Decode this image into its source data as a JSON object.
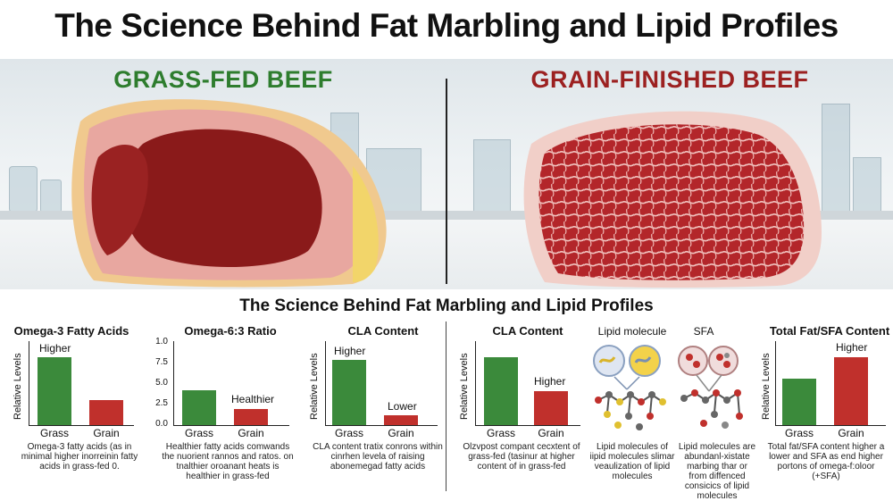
{
  "title": "The Science Behind Fat Marbling and Lipid Profiles",
  "subtitle": "The Science Behind Fat Marbling and Lipid Profiles",
  "colors": {
    "grass": "#3b8a3b",
    "grain": "#c0302c",
    "grass_title": "#2e7d2e",
    "grain_title": "#9c2121"
  },
  "left_photo": {
    "label": "GRASS-FED BEEF"
  },
  "right_photo": {
    "label": "GRAIN-FINISHED BEEF"
  },
  "charts": {
    "omega3": {
      "title": "Omega-3 Fatty Acids",
      "ylabel": "Relative Levels",
      "categories": [
        "Grass",
        "Grain"
      ],
      "annotation": "Higher",
      "caption": "Omega-3 fatty acids (as in minimal higher inorreinin fatty acids in grass-fed 0."
    },
    "omega6": {
      "title": "Omega-6:3 Ratio",
      "ticks": [
        "1.0",
        "7.5",
        "5.0",
        "2.5",
        "0.0"
      ],
      "categories": [
        "Grass",
        "Grain"
      ],
      "annotation": "Healthier",
      "caption": "Healthier fatty acids comwands the nuorient rannos and ratos. on tnalthier oroanant heats is healthier in grass-fed"
    },
    "cla1": {
      "title": "CLA Content",
      "ylabel": "Relative Levels",
      "categories": [
        "Grass",
        "Grain"
      ],
      "annotation_high": "Higher",
      "annotation_low": "Lower",
      "caption": "CLA content tratix conrons within cinrhen levela of raising abonemegad fatty acids"
    },
    "cla2": {
      "title": "CLA Content",
      "ylabel": "Relative Levels",
      "categories": [
        "Grass",
        "Grain"
      ],
      "annotation": "Higher",
      "caption": "Olzvpost compant cecxtent of grass-fed (tasinur at higher content of in grass-fed"
    },
    "lipid": {
      "label": "Lipid molecule",
      "caption": "Lipid molecules of iipid molecules slimar veaulization of lipid molecules"
    },
    "sfa": {
      "label": "SFA",
      "caption": "Lipid molecules are abundanl-xistate marbing thar or from diffenced consicics of lipid molecules"
    },
    "total": {
      "title": "Total Fat/SFA Content",
      "ylabel": "Relative Levels",
      "categories": [
        "Grass",
        "Grain"
      ],
      "annotation": "Higher",
      "caption": "Total fat/SFA content higher a lower and SFA as end higher portons of omega-f:oloor (+SFA)"
    }
  },
  "chart_data": [
    {
      "type": "bar",
      "title": "Omega-3 Fatty Acids",
      "ylabel": "Relative Levels",
      "categories": [
        "Grass",
        "Grain"
      ],
      "values": [
        1.0,
        0.32
      ]
    },
    {
      "type": "bar",
      "title": "Omega-6:3 Ratio",
      "categories": [
        "Grass",
        "Grain"
      ],
      "values": [
        4.0,
        1.9
      ],
      "ylim": [
        0,
        10
      ]
    },
    {
      "type": "bar",
      "title": "CLA Content",
      "ylabel": "Relative Levels",
      "categories": [
        "Grass",
        "Grain"
      ],
      "values": [
        1.0,
        0.12
      ]
    },
    {
      "type": "bar",
      "title": "CLA Content",
      "ylabel": "Relative Levels",
      "categories": [
        "Grass",
        "Grain"
      ],
      "values": [
        1.0,
        0.5
      ]
    },
    {
      "type": "bar",
      "title": "Total Fat/SFA Content",
      "ylabel": "Relative Levels",
      "categories": [
        "Grass",
        "Grain"
      ],
      "values": [
        0.6,
        1.0
      ]
    }
  ]
}
